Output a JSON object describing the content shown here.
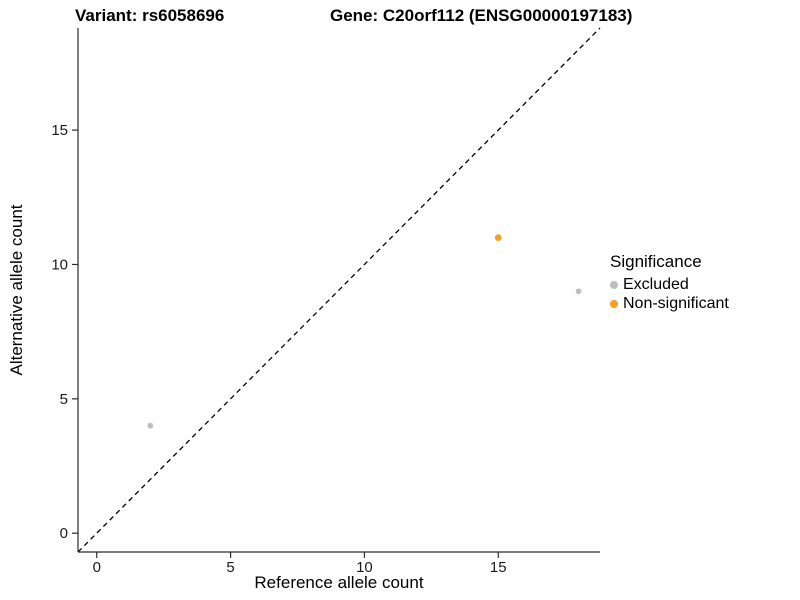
{
  "titles": {
    "variant": "Variant: rs6058696",
    "gene": "Gene: C20orf112 (ENSG00000197183)"
  },
  "axes": {
    "x_label": "Reference allele count",
    "y_label": "Alternative allele count"
  },
  "chart_data": {
    "type": "scatter",
    "title": "Variant: rs6058696 — Gene: C20orf112 (ENSG00000197183)",
    "xlabel": "Reference allele count",
    "ylabel": "Alternative allele count",
    "xlim": [
      -0.7,
      18.8
    ],
    "ylim": [
      -0.7,
      18.8
    ],
    "x_ticks": [
      0,
      5,
      10,
      15
    ],
    "y_ticks": [
      0,
      5,
      10,
      15
    ],
    "grid": false,
    "legend_position": "right",
    "legend_title": "Significance",
    "identity_line": {
      "style": "dashed",
      "color": "#000000",
      "from": -0.7,
      "to": 18.8
    },
    "series": [
      {
        "name": "Excluded",
        "color": "#bebebe",
        "size": 2.9,
        "points": [
          [
            2,
            4
          ],
          [
            18,
            9
          ]
        ]
      },
      {
        "name": "Non-significant",
        "color": "#f8a01d",
        "size": 3.4,
        "points": [
          [
            15,
            11
          ]
        ]
      }
    ]
  }
}
